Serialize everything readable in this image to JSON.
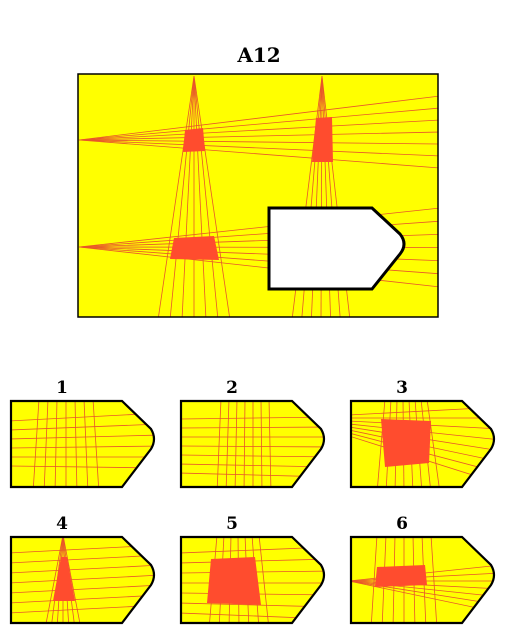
{
  "puzzle": {
    "title": "A12"
  },
  "options": [
    {
      "label": "1"
    },
    {
      "label": "2"
    },
    {
      "label": "3"
    },
    {
      "label": "4"
    },
    {
      "label": "5"
    },
    {
      "label": "6"
    }
  ],
  "colors": {
    "background": "#ffff00",
    "line": "#e8562a",
    "fill": "#ff4c2e",
    "border": "#000000",
    "blank": "#ffffff"
  }
}
